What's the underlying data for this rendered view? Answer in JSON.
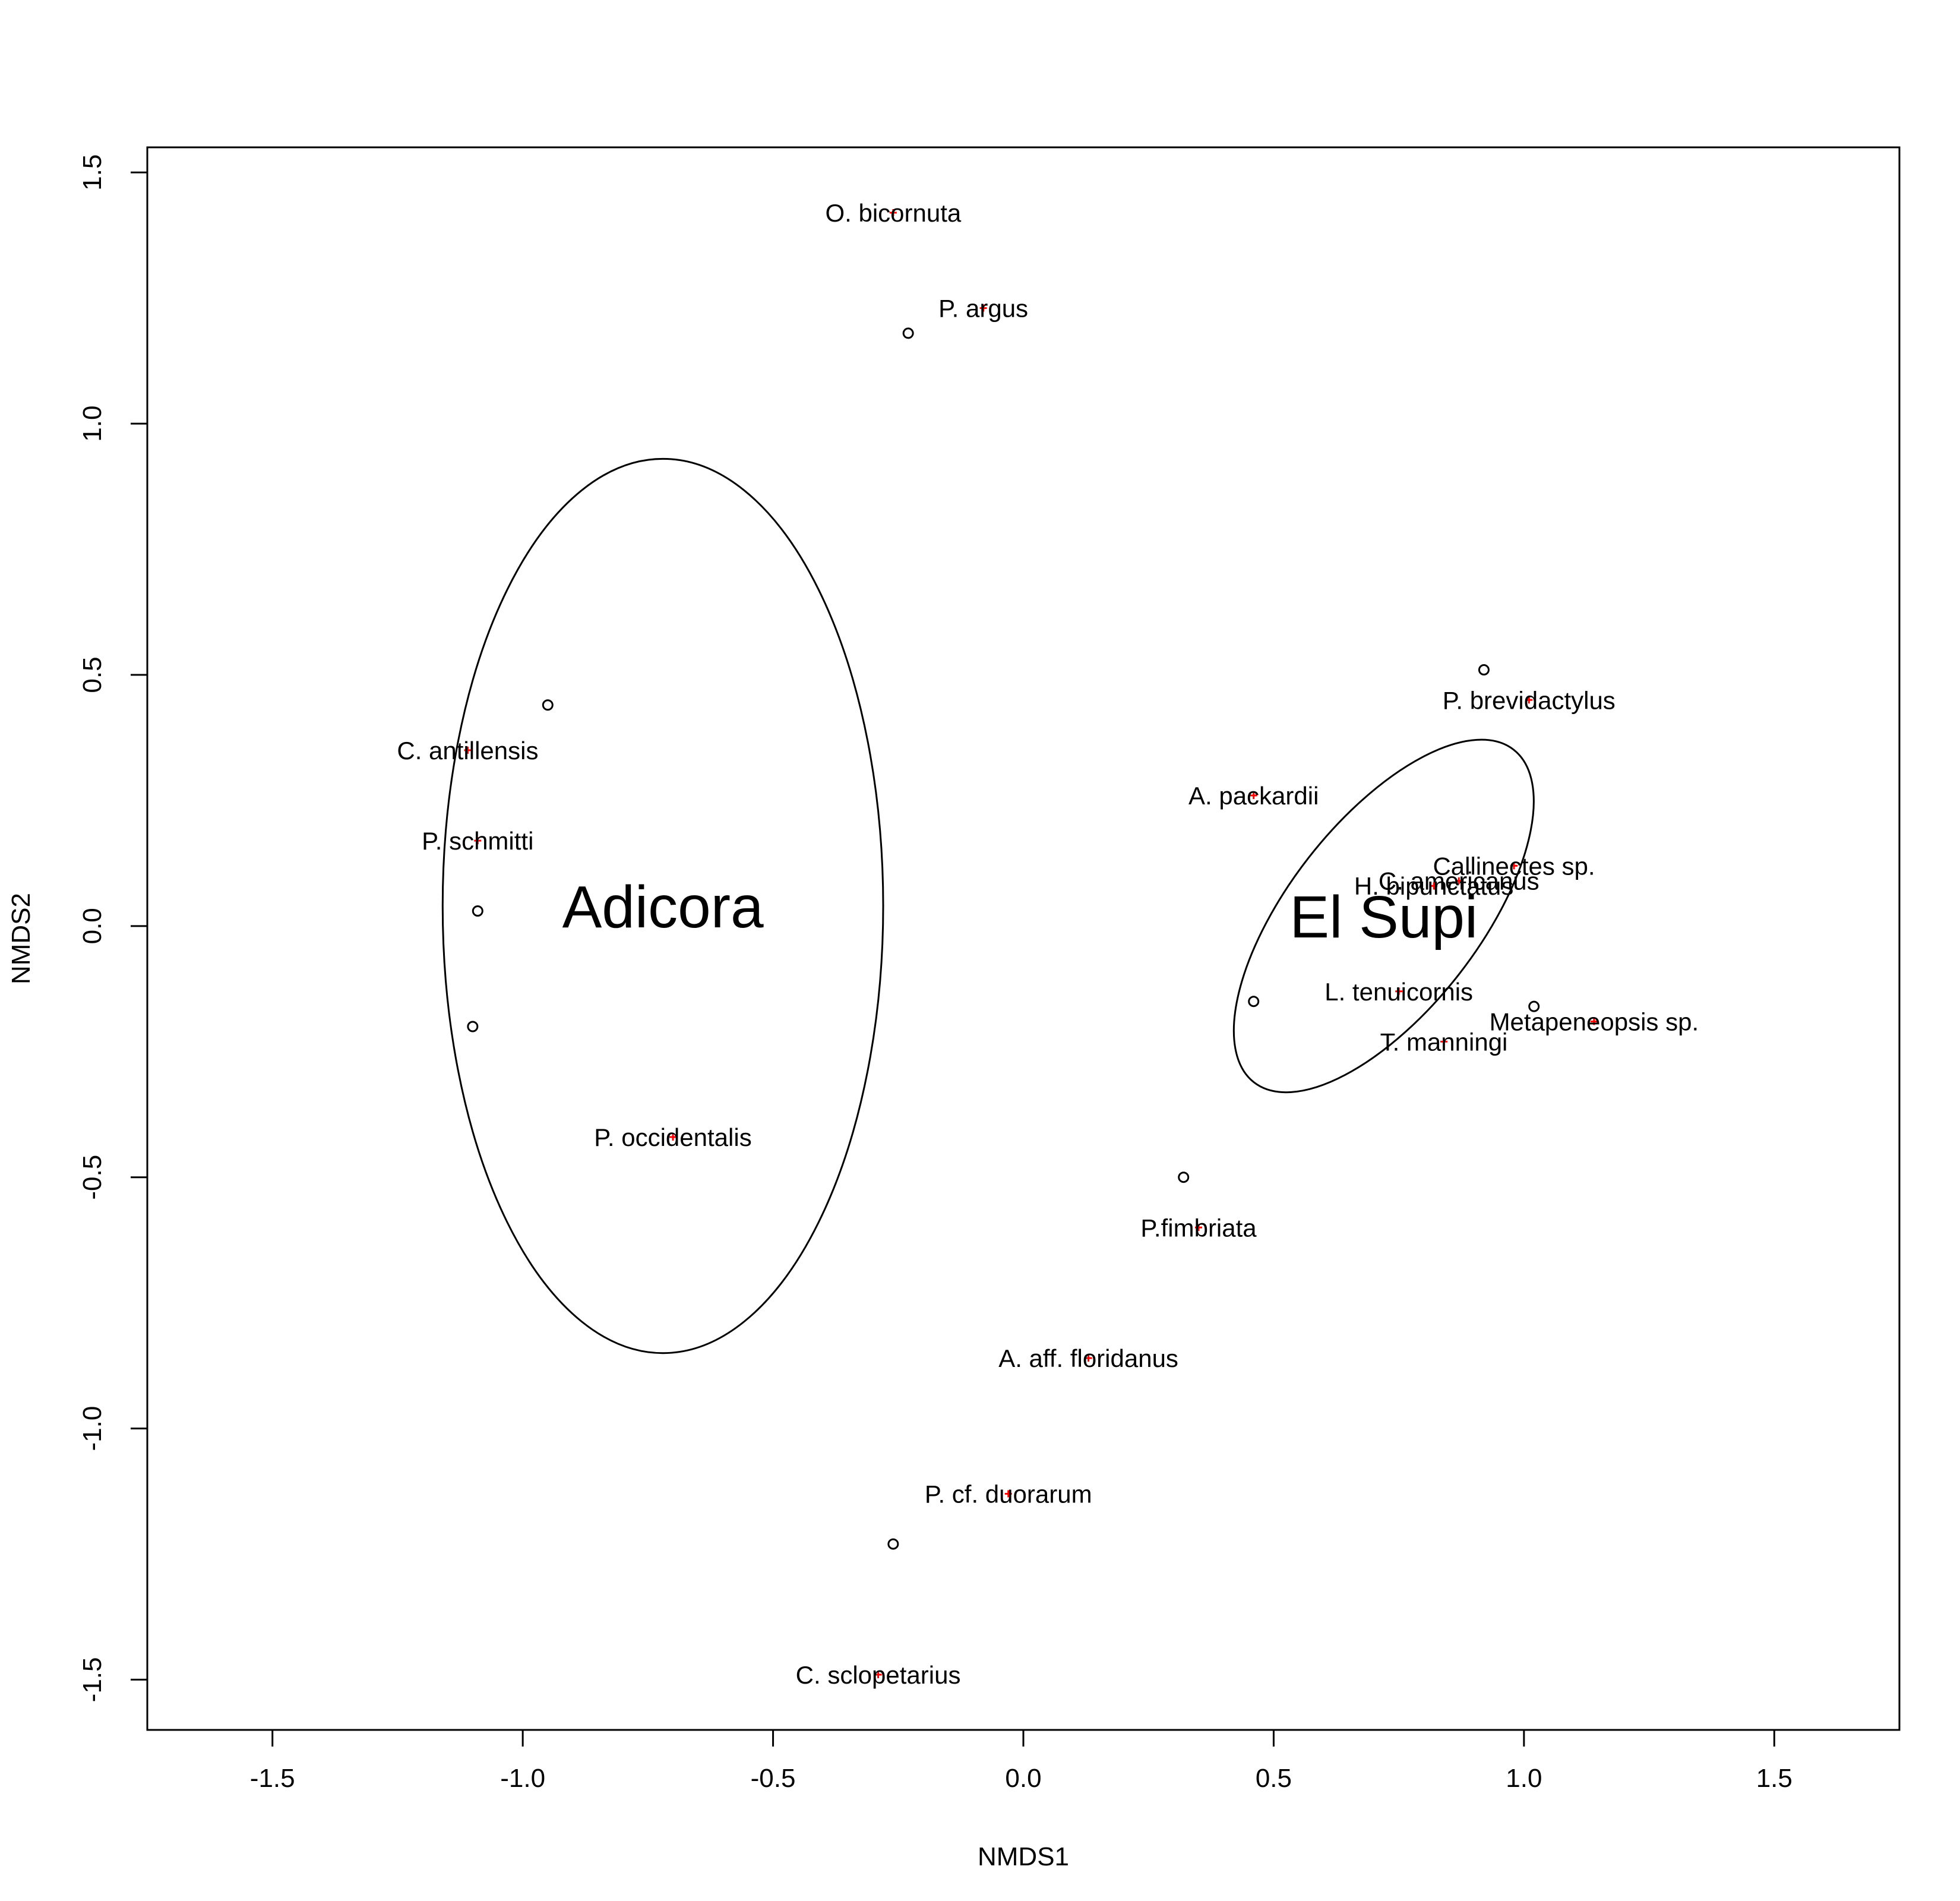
{
  "chart_data": {
    "type": "scatter",
    "xlabel": "NMDS1",
    "ylabel": "NMDS2",
    "xlim": [
      -1.75,
      1.75
    ],
    "ylim": [
      -1.6,
      1.55
    ],
    "x_ticks": [
      "-1.5",
      "-1.0",
      "-0.5",
      "0.0",
      "0.5",
      "1.0",
      "1.5"
    ],
    "y_ticks": [
      "-1.5",
      "-1.0",
      "-0.5",
      "0.0",
      "0.5",
      "1.0",
      "1.5"
    ],
    "colors": {
      "species_marker": "#ff0000",
      "site_marker": "#000000",
      "line": "#000000"
    },
    "sites": [
      {
        "x": -0.23,
        "y": 1.18
      },
      {
        "x": -0.95,
        "y": 0.44
      },
      {
        "x": -1.09,
        "y": 0.03
      },
      {
        "x": -1.1,
        "y": -0.2
      },
      {
        "x": 0.92,
        "y": 0.51
      },
      {
        "x": 0.46,
        "y": -0.15
      },
      {
        "x": 1.02,
        "y": -0.16
      },
      {
        "x": 0.32,
        "y": -0.5
      },
      {
        "x": -0.26,
        "y": -1.23
      }
    ],
    "species": [
      {
        "name": "O. bicornuta",
        "x": -0.26,
        "y": 1.42
      },
      {
        "name": "P. argus",
        "x": -0.08,
        "y": 1.23
      },
      {
        "name": "C. antillensis",
        "x": -1.11,
        "y": 0.35
      },
      {
        "name": "P. schmitti",
        "x": -1.09,
        "y": 0.17
      },
      {
        "name": "P. occidentalis",
        "x": -0.7,
        "y": -0.42
      },
      {
        "name": "P. brevidactylus",
        "x": 1.01,
        "y": 0.45
      },
      {
        "name": "A. packardii",
        "x": 0.46,
        "y": 0.26
      },
      {
        "name": "Callinectes sp.",
        "x": 0.98,
        "y": 0.12
      },
      {
        "name": "C. americanus",
        "x": 0.87,
        "y": 0.09
      },
      {
        "name": "H. bipunctatus",
        "x": 0.82,
        "y": 0.08
      },
      {
        "name": "L. tenuicornis",
        "x": 0.75,
        "y": -0.13
      },
      {
        "name": "Metapeneopsis sp.",
        "x": 1.14,
        "y": -0.19
      },
      {
        "name": "T. manningi",
        "x": 0.84,
        "y": -0.23
      },
      {
        "name": "P.fimbriata",
        "x": 0.35,
        "y": -0.6
      },
      {
        "name": "A. aff. floridanus",
        "x": 0.13,
        "y": -0.86
      },
      {
        "name": "P. cf. duorarum",
        "x": -0.03,
        "y": -1.13
      },
      {
        "name": "C. sclopetarius",
        "x": -0.29,
        "y": -1.49
      }
    ],
    "groups": [
      {
        "name": "Adicora",
        "cx": -0.72,
        "cy": 0.04,
        "rx": 0.44,
        "ry": 0.89,
        "angle": 0
      },
      {
        "name": "El Supi",
        "cx": 0.72,
        "cy": 0.02,
        "rx": 0.19,
        "ry": 0.42,
        "angle": 38
      }
    ]
  }
}
